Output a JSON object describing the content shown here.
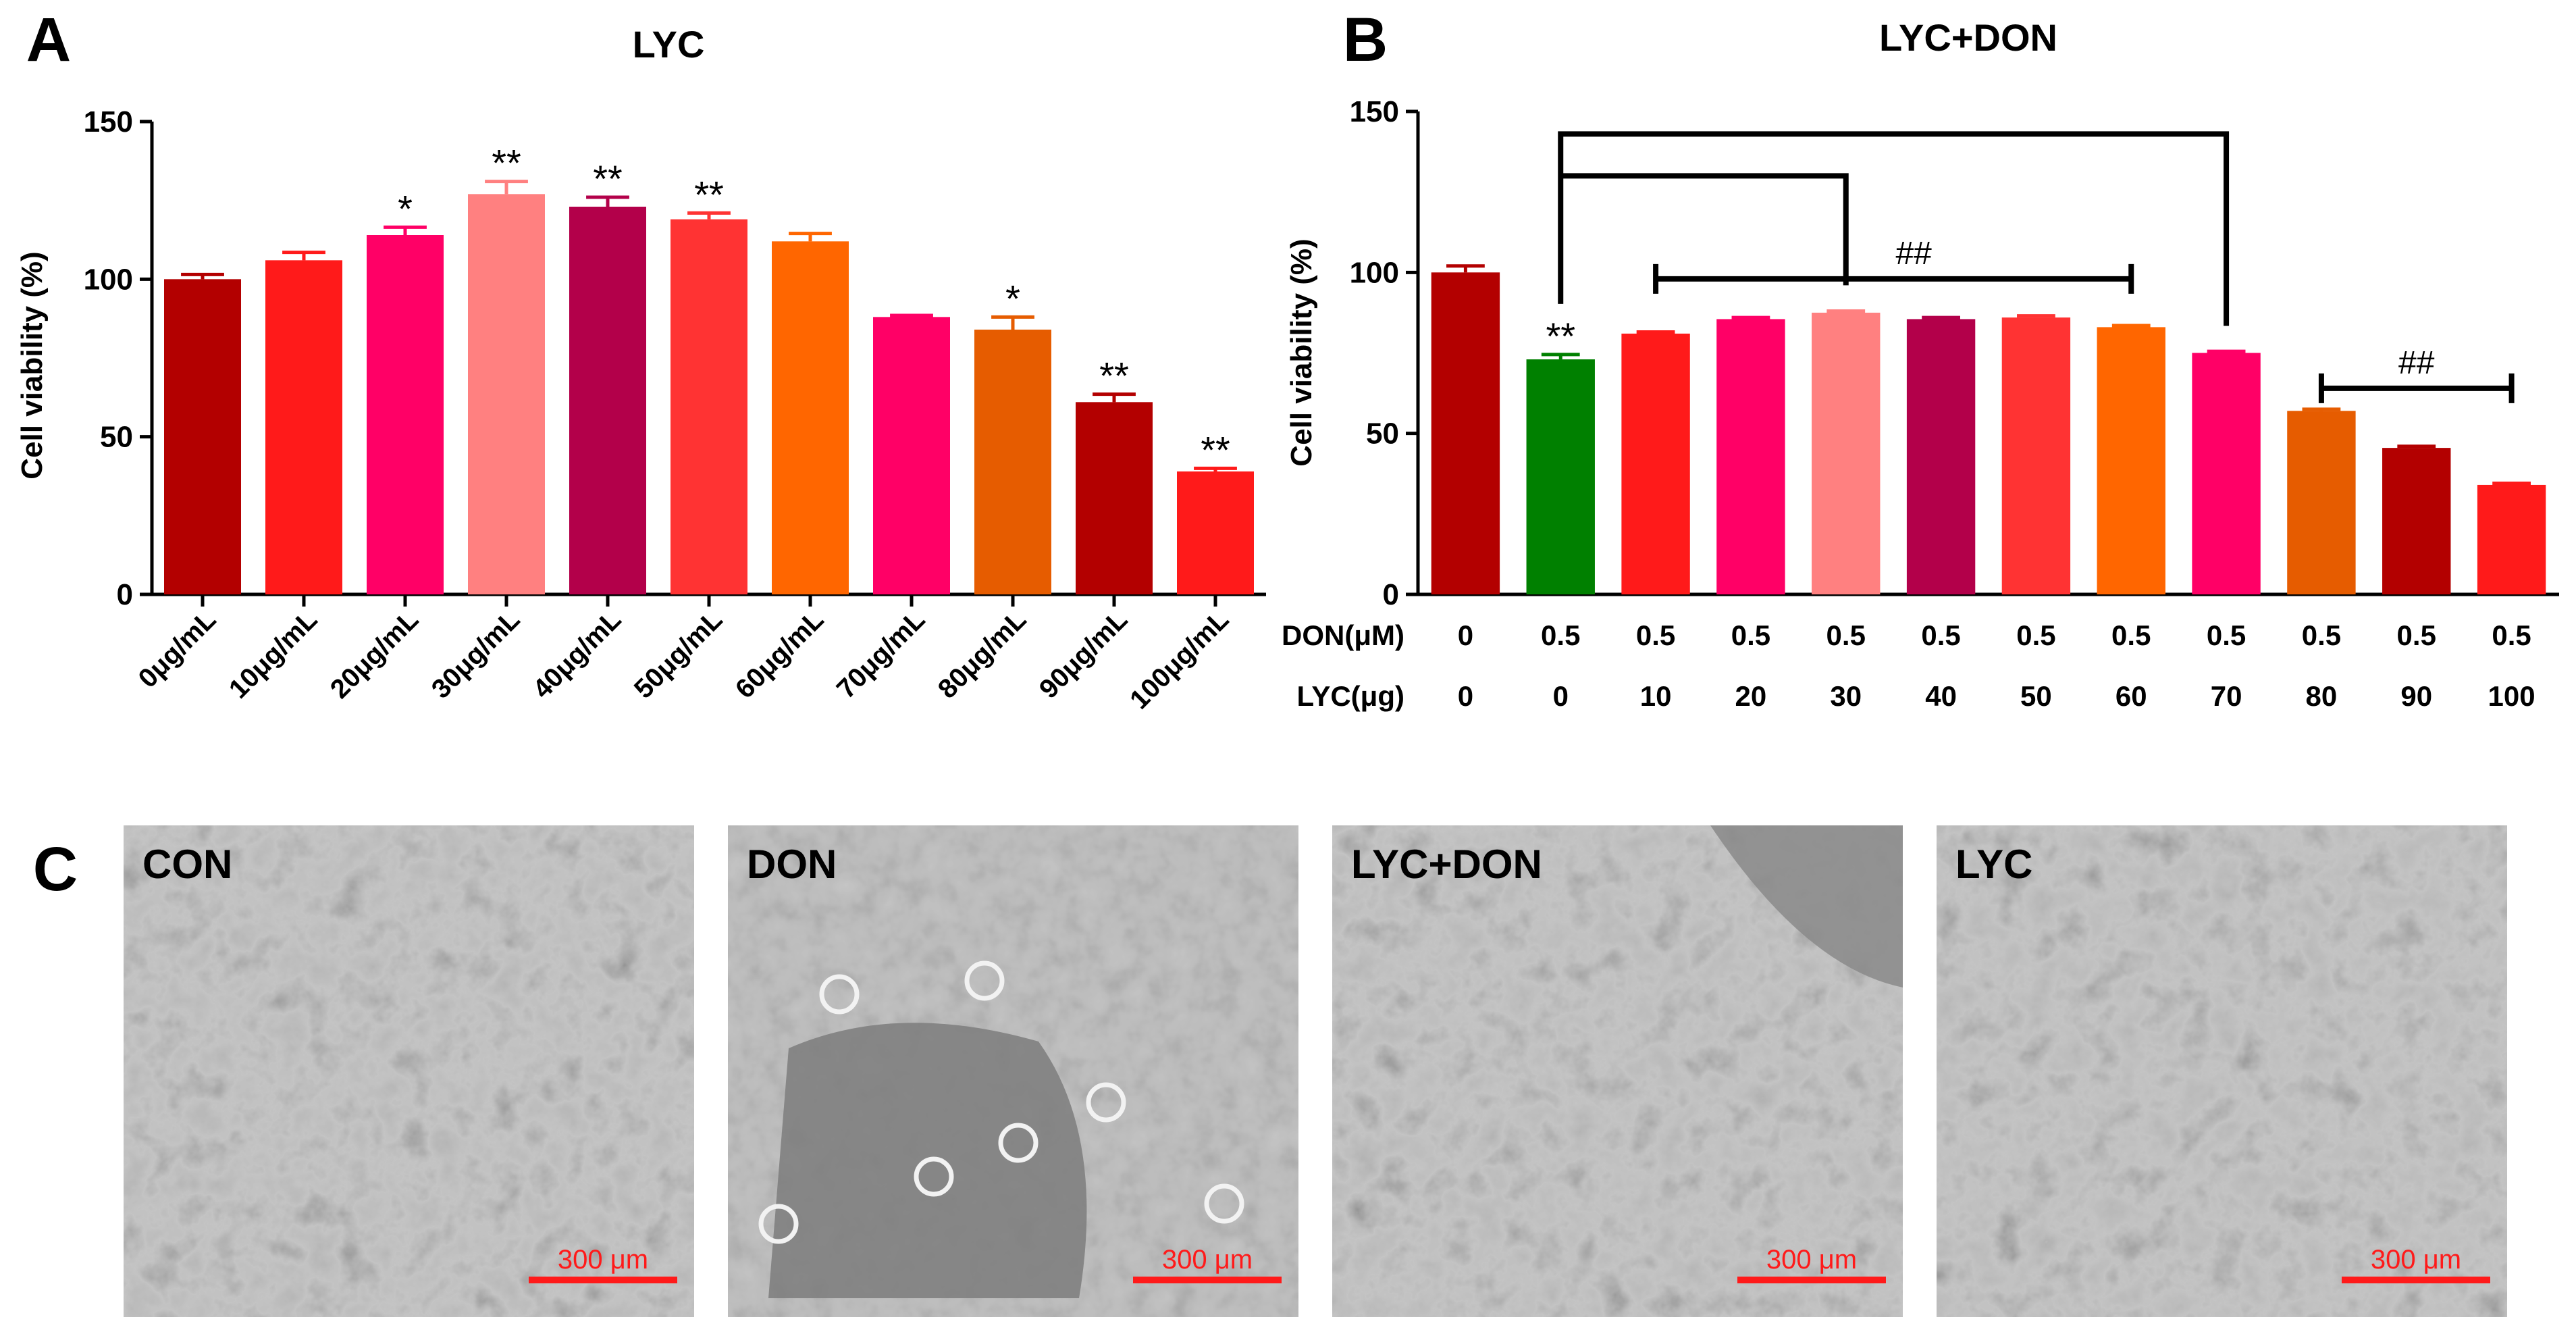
{
  "colors": [
    "#b30000",
    "#ff1a1a",
    "#ff0066",
    "#ff8080",
    "#b3004a",
    "#ff3333",
    "#ff6600",
    "#ff0066",
    "#e65c00",
    "#b30000",
    "#ff1a1a",
    "#008000"
  ],
  "chart_data": [
    {
      "panel": "A",
      "type": "bar",
      "title": "LYC",
      "xlabel": "",
      "ylabel": "Cell viability (%)",
      "ylim": [
        0,
        150
      ],
      "yticks": [
        0,
        50,
        100,
        150
      ],
      "grid": false,
      "categories": [
        "0μg/mL",
        "10μg/mL",
        "20μg/mL",
        "30μg/mL",
        "40μg/mL",
        "50μg/mL",
        "60μg/mL",
        "70μg/mL",
        "80μg/mL",
        "90μg/mL",
        "100μg/mL"
      ],
      "values": [
        100,
        106,
        114,
        127,
        123,
        119,
        112,
        88,
        84,
        61,
        39
      ],
      "errors": [
        1.5,
        2.5,
        2.5,
        4,
        3,
        2,
        2.5,
        0.5,
        4,
        2.5,
        1
      ],
      "significance": [
        "",
        "",
        "*",
        "**",
        "**",
        "**",
        "",
        "",
        "*",
        "**",
        "**"
      ]
    },
    {
      "panel": "B",
      "type": "bar",
      "title": "LYC+DON",
      "xlabel": "",
      "ylabel": "Cell viability (%)",
      "ylim": [
        0,
        150
      ],
      "yticks": [
        0,
        50,
        100,
        150
      ],
      "grid": false,
      "row_labels": [
        "DON(μM)",
        "LYC(μg)"
      ],
      "don": [
        "0",
        "0.5",
        "0.5",
        "0.5",
        "0.5",
        "0.5",
        "0.5",
        "0.5",
        "0.5",
        "0.5",
        "0.5",
        "0.5"
      ],
      "lyc": [
        "0",
        "0",
        "10",
        "20",
        "30",
        "40",
        "50",
        "60",
        "70",
        "80",
        "90",
        "100"
      ],
      "values": [
        100,
        73,
        81,
        85.5,
        87.5,
        85.5,
        86,
        83,
        75,
        57,
        45.5,
        34
      ],
      "errors": [
        2,
        1.5,
        0.5,
        0.5,
        0.5,
        0.5,
        0.5,
        0.5,
        0.5,
        0.5,
        0.5,
        0.5
      ],
      "significance": [
        "",
        "**",
        "",
        "",
        "",
        "",
        "",
        "",
        "",
        "",
        "",
        ""
      ],
      "bracket_label_1": "##",
      "bracket_label_2": "##"
    }
  ],
  "panel_labels": {
    "a": "A",
    "b": "B",
    "c": "C"
  },
  "micrographs": [
    {
      "label": "CON",
      "scale": "300 μm"
    },
    {
      "label": "DON",
      "scale": "300 μm"
    },
    {
      "label": "LYC+DON",
      "scale": "300 μm"
    },
    {
      "label": "LYC",
      "scale": "300 μm"
    }
  ]
}
